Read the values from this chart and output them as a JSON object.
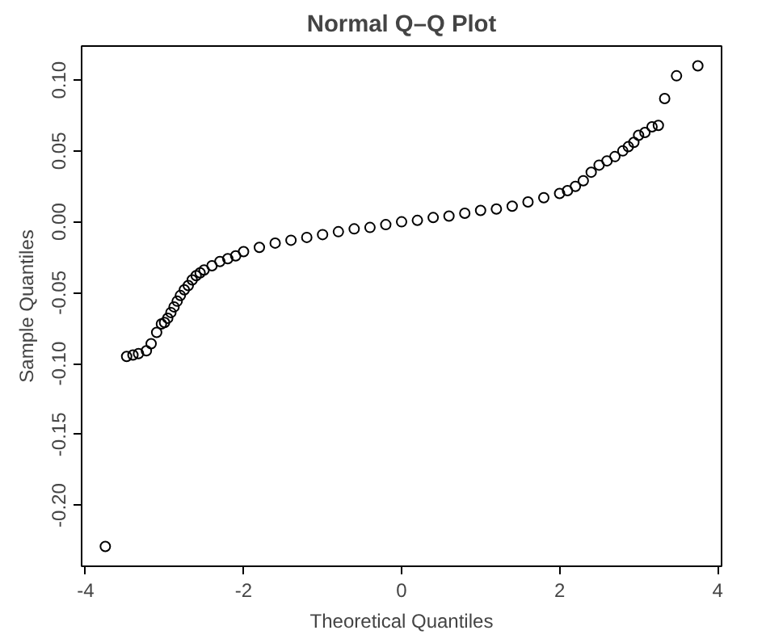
{
  "chart_data": {
    "type": "scatter",
    "title": "Normal Q–Q Plot",
    "xlabel": "Theoretical Quantiles",
    "ylabel": "Sample Quantiles",
    "x": [
      -3.75,
      -3.48,
      -3.4,
      -3.33,
      -3.23,
      -3.17,
      -3.1,
      -3.04,
      -3.0,
      -2.96,
      -2.92,
      -2.88,
      -2.84,
      -2.8,
      -2.75,
      -2.7,
      -2.65,
      -2.6,
      -2.55,
      -2.5,
      -2.4,
      -2.3,
      -2.2,
      -2.1,
      -2.0,
      -1.8,
      -1.6,
      -1.4,
      -1.2,
      -1.0,
      -0.8,
      -0.6,
      -0.4,
      -0.2,
      0.0,
      0.2,
      0.4,
      0.6,
      0.8,
      1.0,
      1.2,
      1.4,
      1.6,
      1.8,
      2.0,
      2.1,
      2.2,
      2.3,
      2.4,
      2.5,
      2.6,
      2.7,
      2.8,
      2.87,
      2.94,
      3.0,
      3.08,
      3.17,
      3.25,
      3.33,
      3.48,
      3.75
    ],
    "values": [
      -0.229,
      -0.095,
      -0.094,
      -0.093,
      -0.091,
      -0.086,
      -0.078,
      -0.072,
      -0.071,
      -0.068,
      -0.064,
      -0.06,
      -0.056,
      -0.052,
      -0.048,
      -0.045,
      -0.041,
      -0.038,
      -0.036,
      -0.034,
      -0.031,
      -0.028,
      -0.026,
      -0.024,
      -0.021,
      -0.018,
      -0.015,
      -0.013,
      -0.011,
      -0.009,
      -0.007,
      -0.005,
      -0.004,
      -0.002,
      0.0,
      0.001,
      0.003,
      0.004,
      0.006,
      0.008,
      0.009,
      0.011,
      0.014,
      0.017,
      0.02,
      0.022,
      0.025,
      0.029,
      0.035,
      0.04,
      0.043,
      0.046,
      0.05,
      0.053,
      0.056,
      0.061,
      0.063,
      0.067,
      0.068,
      0.087,
      0.103,
      0.11
    ],
    "color": "#000000",
    "marker": "circle",
    "xlim": [
      -4.05,
      4.05
    ],
    "ylim": [
      -0.243,
      0.124
    ],
    "xticks": [
      -4,
      -2,
      0,
      2,
      4
    ],
    "yticks": [
      {
        "value": -0.2,
        "label": "-0.20"
      },
      {
        "value": -0.15,
        "label": "-0.15"
      },
      {
        "value": -0.1,
        "label": "-0.10"
      },
      {
        "value": -0.05,
        "label": "-0.05"
      },
      {
        "value": 0.0,
        "label": "0.00"
      },
      {
        "value": 0.05,
        "label": "0.05"
      },
      {
        "value": 0.1,
        "label": "0.10"
      }
    ],
    "grid": false
  }
}
